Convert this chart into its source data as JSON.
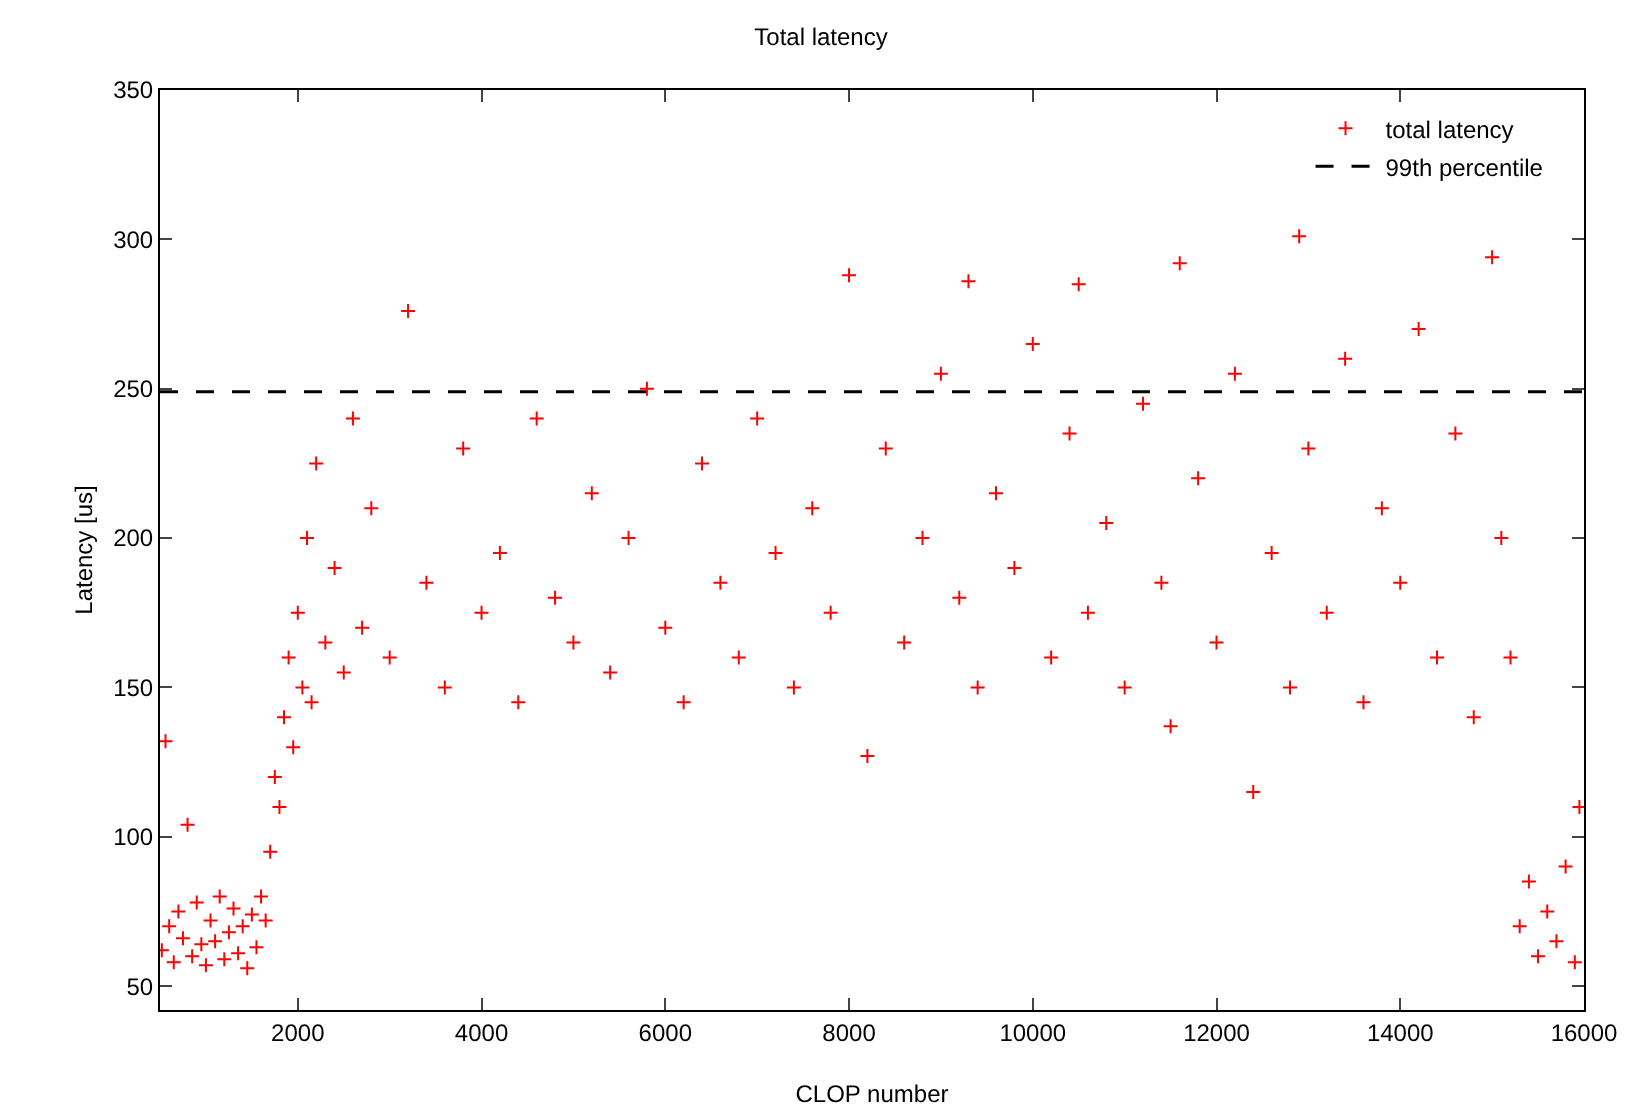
{
  "chart_data": {
    "type": "scatter",
    "title": "Total latency",
    "xlabel": "CLOP number",
    "ylabel": "Latency [us]",
    "xlim": [
      500,
      16000
    ],
    "xticks": [
      2000,
      4000,
      6000,
      8000,
      10000,
      12000,
      14000,
      16000
    ],
    "ylim": [
      42,
      350
    ],
    "yticks": [
      50,
      100,
      150,
      200,
      250,
      300,
      350
    ],
    "marker": "cross",
    "grid": false,
    "legend": "top right",
    "ref_lines": [
      {
        "axis": "y",
        "value": 249,
        "label": "99th percentile",
        "color": "#000000",
        "line_style": "dashed"
      }
    ],
    "series": [
      {
        "name": "total latency",
        "color": "#ff0000",
        "x": [
          520,
          560,
          600,
          650,
          700,
          750,
          800,
          850,
          900,
          950,
          1000,
          1050,
          1100,
          1150,
          1200,
          1250,
          1300,
          1350,
          1400,
          1450,
          1500,
          1550,
          1600,
          1650,
          1700,
          1750,
          1800,
          1850,
          1900,
          1950,
          2000,
          2050,
          2100,
          2150,
          2200,
          2300,
          2400,
          2500,
          2600,
          2700,
          2800,
          3000,
          3200,
          3400,
          3600,
          3800,
          4000,
          4200,
          4400,
          4600,
          4800,
          5000,
          5200,
          5400,
          5600,
          5800,
          6000,
          6200,
          6400,
          6600,
          6800,
          7000,
          7200,
          7400,
          7600,
          7800,
          8000,
          8200,
          8400,
          8600,
          8800,
          9000,
          9200,
          9300,
          9400,
          9600,
          9800,
          10000,
          10200,
          10400,
          10500,
          10600,
          10800,
          11000,
          11200,
          11400,
          11500,
          11600,
          11800,
          12000,
          12200,
          12400,
          12600,
          12800,
          12900,
          13000,
          13200,
          13400,
          13600,
          13800,
          14000,
          14200,
          14400,
          14600,
          14800,
          15000,
          15100,
          15200,
          15300,
          15400,
          15500,
          15600,
          15700,
          15800,
          15900,
          15950
        ],
        "values": [
          62,
          132,
          70,
          58,
          75,
          66,
          104,
          60,
          78,
          64,
          57,
          72,
          65,
          80,
          59,
          68,
          76,
          61,
          70,
          56,
          74,
          63,
          80,
          72,
          95,
          120,
          110,
          140,
          160,
          130,
          175,
          150,
          200,
          145,
          225,
          165,
          190,
          155,
          240,
          170,
          210,
          160,
          276,
          185,
          150,
          230,
          175,
          195,
          145,
          240,
          180,
          165,
          215,
          155,
          200,
          250,
          170,
          145,
          225,
          185,
          160,
          240,
          195,
          150,
          210,
          175,
          288,
          127,
          230,
          165,
          200,
          255,
          180,
          286,
          150,
          215,
          190,
          265,
          160,
          235,
          285,
          175,
          205,
          150,
          245,
          185,
          137,
          292,
          220,
          165,
          255,
          115,
          195,
          150,
          301,
          230,
          175,
          260,
          145,
          210,
          185,
          270,
          160,
          235,
          140,
          294,
          200,
          160,
          70,
          85,
          60,
          75,
          65,
          90,
          58,
          110
        ]
      }
    ]
  }
}
